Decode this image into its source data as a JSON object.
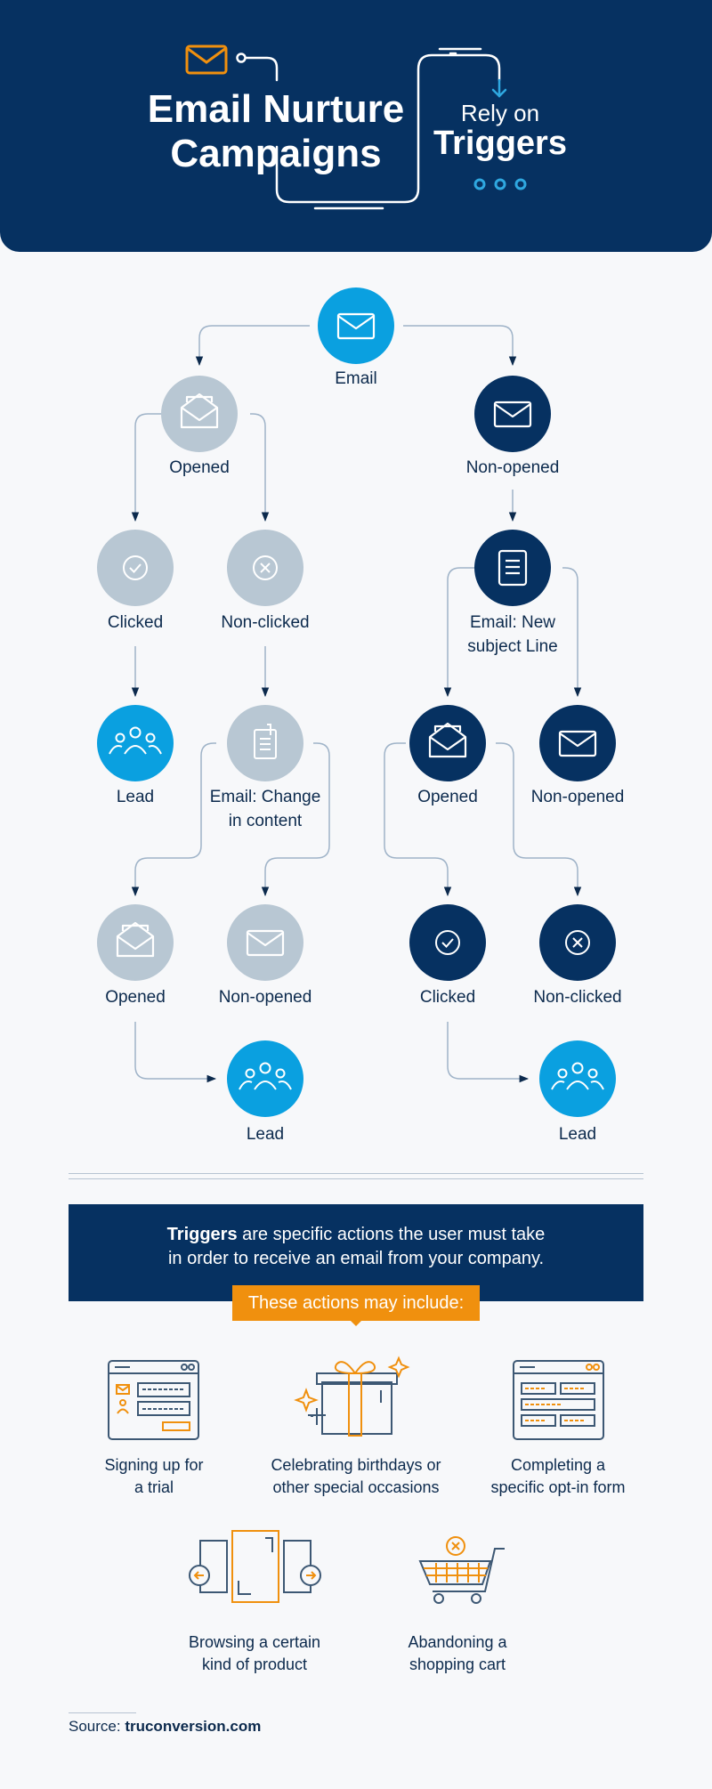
{
  "header": {
    "title_line1": "Email Nurture",
    "title_line2": "Campaigns",
    "rely_on": "Rely on",
    "triggers": "Triggers"
  },
  "flow": {
    "email": "Email",
    "opened": "Opened",
    "non_opened": "Non-opened",
    "clicked": "Clicked",
    "non_clicked": "Non-clicked",
    "email_new_subject_1": "Email: New",
    "email_new_subject_2": "subject Line",
    "lead": "Lead",
    "email_change_1": "Email: Change",
    "email_change_2": "in content"
  },
  "triggers_box": {
    "bold": "Triggers",
    "line1_rest": " are specific actions the user must take",
    "line2": "in order to receive an email from your company.",
    "pill": "These actions may include:"
  },
  "actions": {
    "signup_1": "Signing up for",
    "signup_2": "a trial",
    "birthday_1": "Celebrating birthdays or",
    "birthday_2": "other special occasions",
    "form_1": "Completing a",
    "form_2": "specific opt-in form",
    "browse_1": "Browsing a certain",
    "browse_2": "kind of product",
    "cart_1": "Abandoning a",
    "cart_2": "shopping cart"
  },
  "source": {
    "prefix": "Source: ",
    "site": "truconversion.com"
  },
  "colors": {
    "navy": "#063161",
    "bright_blue": "#0aa0e0",
    "gray": "#b8c7d3",
    "orange": "#f0900e",
    "line": "#9fb3c8"
  }
}
